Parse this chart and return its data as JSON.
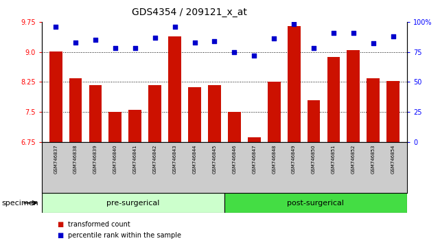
{
  "title": "GDS4354 / 209121_x_at",
  "samples": [
    "GSM746837",
    "GSM746838",
    "GSM746839",
    "GSM746840",
    "GSM746841",
    "GSM746842",
    "GSM746843",
    "GSM746844",
    "GSM746845",
    "GSM746846",
    "GSM746847",
    "GSM746848",
    "GSM746849",
    "GSM746850",
    "GSM746851",
    "GSM746852",
    "GSM746853",
    "GSM746854"
  ],
  "bar_values": [
    9.01,
    8.35,
    8.18,
    7.5,
    7.55,
    8.18,
    9.38,
    8.12,
    8.17,
    7.5,
    6.87,
    8.26,
    9.65,
    7.8,
    8.88,
    9.05,
    8.35,
    8.28
  ],
  "percentile_values": [
    96,
    83,
    85,
    78,
    78,
    87,
    96,
    83,
    84,
    75,
    72,
    86,
    98,
    78,
    91,
    91,
    82,
    88
  ],
  "pre_surgical_count": 9,
  "post_surgical_count": 9,
  "ylim_left": [
    6.75,
    9.75
  ],
  "ylim_right": [
    0,
    100
  ],
  "yticks_left": [
    6.75,
    7.5,
    8.25,
    9.0,
    9.75
  ],
  "yticks_right": [
    0,
    25,
    50,
    75,
    100
  ],
  "ytick_labels_right": [
    "0",
    "25",
    "50",
    "75",
    "100%"
  ],
  "bar_color": "#CC1100",
  "dot_color": "#0000CC",
  "pre_surgical_color": "#CCFFCC",
  "post_surgical_color": "#44DD44",
  "sample_bg_color": "#CCCCCC",
  "background_color": "#FFFFFF",
  "xlabel_specimen": "specimen",
  "label_pre": "pre-surgerical",
  "label_post": "post-surgerical",
  "legend_bar_label": "transformed count",
  "legend_dot_label": "percentile rank within the sample",
  "title_fontsize": 10,
  "tick_fontsize": 7,
  "sample_fontsize": 5,
  "group_fontsize": 8,
  "legend_fontsize": 7
}
